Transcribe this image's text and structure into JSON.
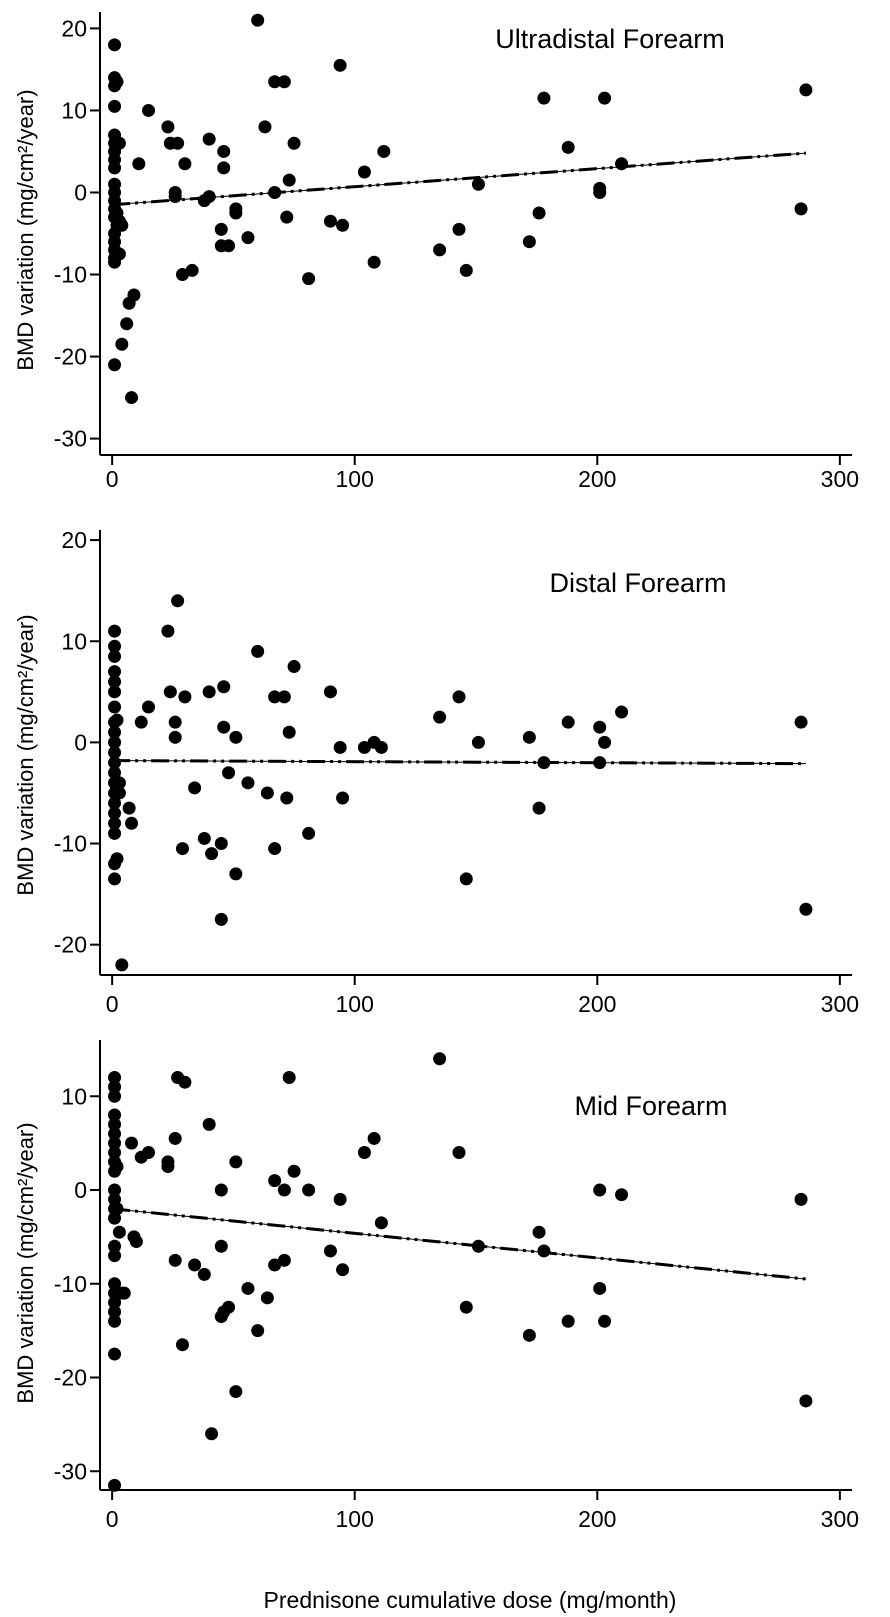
{
  "chart_data": [
    {
      "type": "scatter",
      "title": "Ultradistal Forearm",
      "ylabel": "BMD variation (mg/cm²/year)",
      "xlabel": "",
      "xlim": [
        -5,
        305
      ],
      "ylim": [
        -32,
        22
      ],
      "xticks": [
        0,
        100,
        200,
        300
      ],
      "yticks": [
        20,
        10,
        0,
        -10,
        -20,
        -30
      ],
      "tick_labels_x": [
        "0",
        "100",
        "200",
        "300"
      ],
      "tick_labels_y": [
        "20",
        "10",
        "0",
        "-10",
        "-20",
        "-30"
      ],
      "grid": false,
      "trend": {
        "x1": 0,
        "y1": -1.5,
        "x2": 286,
        "y2": 4.8,
        "style": "dash-dot-dot"
      },
      "points": [
        [
          1,
          18
        ],
        [
          1,
          14
        ],
        [
          1,
          13
        ],
        [
          1,
          10.5
        ],
        [
          1,
          7
        ],
        [
          1,
          6
        ],
        [
          1,
          5
        ],
        [
          1,
          4
        ],
        [
          1,
          3
        ],
        [
          1,
          1
        ],
        [
          1,
          0
        ],
        [
          1,
          -1
        ],
        [
          1,
          -2
        ],
        [
          1,
          -3
        ],
        [
          1,
          -5
        ],
        [
          1,
          -6
        ],
        [
          1,
          -7
        ],
        [
          1,
          -8
        ],
        [
          1,
          -8.5
        ],
        [
          1,
          -21
        ],
        [
          2,
          13.5
        ],
        [
          2,
          -2.5
        ],
        [
          2,
          -4
        ],
        [
          3,
          6
        ],
        [
          3,
          -7.5
        ],
        [
          3,
          -3.5
        ],
        [
          4,
          -18.5
        ],
        [
          4,
          -4
        ],
        [
          6,
          -16
        ],
        [
          7,
          -13.5
        ],
        [
          8,
          -25
        ],
        [
          9,
          -12.5
        ],
        [
          11,
          3.5
        ],
        [
          15,
          10
        ],
        [
          23,
          8
        ],
        [
          24,
          6
        ],
        [
          26,
          0
        ],
        [
          26,
          -0.5
        ],
        [
          27,
          6
        ],
        [
          29,
          -10
        ],
        [
          30,
          3.5
        ],
        [
          33,
          -9.5
        ],
        [
          38,
          -1
        ],
        [
          40,
          -0.5
        ],
        [
          40,
          6.5
        ],
        [
          45,
          -4.5
        ],
        [
          45,
          -6.5
        ],
        [
          46,
          5
        ],
        [
          46,
          3
        ],
        [
          48,
          -6.5
        ],
        [
          51,
          -2
        ],
        [
          51,
          -2.5
        ],
        [
          56,
          -5.5
        ],
        [
          60,
          21
        ],
        [
          63,
          8
        ],
        [
          67,
          13.5
        ],
        [
          67,
          0
        ],
        [
          71,
          13.5
        ],
        [
          72,
          -3
        ],
        [
          73,
          1.5
        ],
        [
          75,
          6
        ],
        [
          81,
          -10.5
        ],
        [
          90,
          -3.5
        ],
        [
          94,
          15.5
        ],
        [
          95,
          -4
        ],
        [
          104,
          2.5
        ],
        [
          108,
          -8.5
        ],
        [
          112,
          5
        ],
        [
          135,
          -7
        ],
        [
          143,
          -4.5
        ],
        [
          146,
          -9.5
        ],
        [
          151,
          1
        ],
        [
          172,
          -6
        ],
        [
          176,
          -2.5
        ],
        [
          178,
          11.5
        ],
        [
          188,
          5.5
        ],
        [
          201,
          0.5
        ],
        [
          201,
          0
        ],
        [
          203,
          11.5
        ],
        [
          210,
          3.5
        ],
        [
          284,
          -2
        ],
        [
          286,
          12.5
        ]
      ]
    },
    {
      "type": "scatter",
      "title": "Distal Forearm",
      "ylabel": "BMD variation (mg/cm²/year)",
      "xlabel": "",
      "xlim": [
        -5,
        305
      ],
      "ylim": [
        -23,
        21
      ],
      "xticks": [
        0,
        100,
        200,
        300
      ],
      "yticks": [
        20,
        10,
        0,
        -10,
        -20
      ],
      "tick_labels_x": [
        "0",
        "100",
        "200",
        "300"
      ],
      "tick_labels_y": [
        "20",
        "10",
        "0",
        "-10",
        "-20"
      ],
      "grid": false,
      "trend": {
        "x1": 0,
        "y1": -1.8,
        "x2": 286,
        "y2": -2.1,
        "style": "dash-dot-dot"
      },
      "points": [
        [
          1,
          11
        ],
        [
          1,
          9.5
        ],
        [
          1,
          8.5
        ],
        [
          1,
          7
        ],
        [
          1,
          6
        ],
        [
          1,
          5
        ],
        [
          1,
          3.5
        ],
        [
          1,
          2
        ],
        [
          1,
          1
        ],
        [
          1,
          0
        ],
        [
          1,
          -1
        ],
        [
          1,
          -2
        ],
        [
          1,
          -3
        ],
        [
          1,
          -4
        ],
        [
          1,
          -5
        ],
        [
          1,
          -6
        ],
        [
          1,
          -7
        ],
        [
          1,
          -8
        ],
        [
          1,
          -9
        ],
        [
          1,
          -12
        ],
        [
          1,
          -13.5
        ],
        [
          2,
          2.2
        ],
        [
          2,
          -11.5
        ],
        [
          3,
          -4
        ],
        [
          3,
          -5
        ],
        [
          4,
          -22
        ],
        [
          7,
          -6.5
        ],
        [
          8,
          -8
        ],
        [
          12,
          2
        ],
        [
          15,
          3.5
        ],
        [
          23,
          11
        ],
        [
          24,
          5
        ],
        [
          26,
          0.5
        ],
        [
          26,
          2
        ],
        [
          27,
          14
        ],
        [
          29,
          -10.5
        ],
        [
          30,
          4.5
        ],
        [
          34,
          -4.5
        ],
        [
          38,
          -9.5
        ],
        [
          40,
          5
        ],
        [
          41,
          -11
        ],
        [
          45,
          -17.5
        ],
        [
          45,
          -10
        ],
        [
          46,
          5.5
        ],
        [
          46,
          1.5
        ],
        [
          48,
          -3
        ],
        [
          51,
          0.5
        ],
        [
          51,
          -13
        ],
        [
          56,
          -4
        ],
        [
          60,
          9
        ],
        [
          64,
          -5
        ],
        [
          67,
          4.5
        ],
        [
          67,
          -10.5
        ],
        [
          71,
          4.5
        ],
        [
          72,
          -5.5
        ],
        [
          73,
          1
        ],
        [
          75,
          7.5
        ],
        [
          81,
          -9
        ],
        [
          90,
          5
        ],
        [
          94,
          -0.5
        ],
        [
          95,
          -5.5
        ],
        [
          104,
          -0.5
        ],
        [
          108,
          0
        ],
        [
          111,
          -0.5
        ],
        [
          135,
          2.5
        ],
        [
          143,
          4.5
        ],
        [
          146,
          -13.5
        ],
        [
          151,
          0
        ],
        [
          172,
          0.5
        ],
        [
          176,
          -6.5
        ],
        [
          178,
          -2
        ],
        [
          188,
          2
        ],
        [
          201,
          1.5
        ],
        [
          201,
          -2
        ],
        [
          203,
          0
        ],
        [
          210,
          3
        ],
        [
          284,
          2
        ],
        [
          286,
          -16.5
        ]
      ]
    },
    {
      "type": "scatter",
      "title": "Mid Forearm",
      "ylabel": "BMD variation (mg/cm²/year)",
      "xlabel": "Prednisone cumulative dose (mg/month)",
      "xlim": [
        -5,
        305
      ],
      "ylim": [
        -32,
        16
      ],
      "xticks": [
        0,
        100,
        200,
        300
      ],
      "yticks": [
        10,
        0,
        -10,
        -20,
        -30
      ],
      "tick_labels_x": [
        "0",
        "100",
        "200",
        "300"
      ],
      "tick_labels_y": [
        "10",
        "0",
        "-10",
        "-20",
        "-30"
      ],
      "grid": false,
      "trend": {
        "x1": 0,
        "y1": -2,
        "x2": 286,
        "y2": -9.5,
        "style": "dash-dot-dot"
      },
      "points": [
        [
          1,
          12
        ],
        [
          1,
          11
        ],
        [
          1,
          10
        ],
        [
          1,
          8
        ],
        [
          1,
          7
        ],
        [
          1,
          6
        ],
        [
          1,
          5
        ],
        [
          1,
          4
        ],
        [
          1,
          3
        ],
        [
          1,
          2
        ],
        [
          1,
          0
        ],
        [
          1,
          -1
        ],
        [
          1,
          -2
        ],
        [
          1,
          -3
        ],
        [
          1,
          -6
        ],
        [
          1,
          -7
        ],
        [
          1,
          -10
        ],
        [
          1,
          -11
        ],
        [
          1,
          -12
        ],
        [
          1,
          -13
        ],
        [
          1,
          -14
        ],
        [
          1,
          -17.5
        ],
        [
          1,
          -31.5
        ],
        [
          2,
          2.5
        ],
        [
          2,
          -2
        ],
        [
          3,
          -4.5
        ],
        [
          4,
          -11
        ],
        [
          5,
          -11
        ],
        [
          8,
          5
        ],
        [
          9,
          -5
        ],
        [
          10,
          -5.5
        ],
        [
          12,
          3.5
        ],
        [
          15,
          4
        ],
        [
          23,
          3
        ],
        [
          23,
          2.5
        ],
        [
          26,
          5.5
        ],
        [
          26,
          -7.5
        ],
        [
          27,
          12
        ],
        [
          29,
          -16.5
        ],
        [
          30,
          11.5
        ],
        [
          34,
          -8
        ],
        [
          38,
          -9
        ],
        [
          40,
          7
        ],
        [
          41,
          -26
        ],
        [
          45,
          0
        ],
        [
          45,
          -6
        ],
        [
          45,
          -13.5
        ],
        [
          46,
          -13
        ],
        [
          48,
          -12.5
        ],
        [
          51,
          3
        ],
        [
          51,
          -21.5
        ],
        [
          56,
          -10.5
        ],
        [
          60,
          -15
        ],
        [
          64,
          -11.5
        ],
        [
          67,
          1
        ],
        [
          67,
          -8
        ],
        [
          71,
          0
        ],
        [
          71,
          -7.5
        ],
        [
          73,
          12
        ],
        [
          75,
          2
        ],
        [
          81,
          0
        ],
        [
          90,
          -6.5
        ],
        [
          94,
          -1
        ],
        [
          95,
          -8.5
        ],
        [
          104,
          4
        ],
        [
          108,
          5.5
        ],
        [
          111,
          -3.5
        ],
        [
          135,
          14
        ],
        [
          143,
          4
        ],
        [
          146,
          -12.5
        ],
        [
          151,
          -6
        ],
        [
          172,
          -15.5
        ],
        [
          176,
          -4.5
        ],
        [
          178,
          -6.5
        ],
        [
          188,
          -14
        ],
        [
          201,
          0
        ],
        [
          201,
          -10.5
        ],
        [
          203,
          -14
        ],
        [
          210,
          -0.5
        ],
        [
          284,
          -1
        ],
        [
          286,
          -22.5
        ]
      ]
    }
  ]
}
